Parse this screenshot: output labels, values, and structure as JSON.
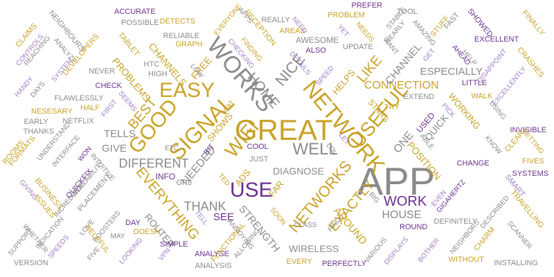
{
  "colors": {
    "gray": "#8a8a8a",
    "purple": "#6a2f8e",
    "gold": "#c9a227",
    "lavender": "#a07ec8"
  },
  "words": [
    {
      "text": "APP",
      "color": "gray"
    },
    {
      "text": "GREAT",
      "color": "gold"
    },
    {
      "text": "NETWORK",
      "color": "gold"
    },
    {
      "text": "WORKS",
      "color": "gray"
    },
    {
      "text": "SIGNAL",
      "color": "gold"
    },
    {
      "text": "USEFUL",
      "color": "gold"
    },
    {
      "text": "GOOD",
      "color": "gold"
    },
    {
      "text": "EASY",
      "color": "gold"
    },
    {
      "text": "USE",
      "color": "purple"
    },
    {
      "text": "WIFI",
      "color": "gold"
    },
    {
      "text": "WELL",
      "color": "gray"
    },
    {
      "text": "NETWORKS",
      "color": "gold"
    },
    {
      "text": "EVERYTHING",
      "color": "gold"
    },
    {
      "text": "LIKE",
      "color": "gold"
    },
    {
      "text": "NICE",
      "color": "gray"
    },
    {
      "text": "EXACTLY",
      "color": "gold"
    },
    {
      "text": "HOME",
      "color": "gray"
    },
    {
      "text": "WORK",
      "color": "purple"
    },
    {
      "text": "BEST",
      "color": "gold"
    },
    {
      "text": "THANK",
      "color": "gray"
    },
    {
      "text": "DIFFERENT",
      "color": "gray"
    },
    {
      "text": "CONNECTION",
      "color": "gold"
    },
    {
      "text": "ESPECIALLY",
      "color": "gray"
    },
    {
      "text": "HOUSE",
      "color": "gray"
    },
    {
      "text": "STRENGTH",
      "color": "gray"
    },
    {
      "text": "NEEDED",
      "color": "gray"
    },
    {
      "text": "AROUND",
      "color": "gold"
    },
    {
      "text": "CHANNEL",
      "color": "gray"
    },
    {
      "text": "CHANNELS",
      "color": "gold"
    },
    {
      "text": "WIRELESS",
      "color": "gray"
    },
    {
      "text": "DIAGNOSE",
      "color": "gray"
    },
    {
      "text": "POSITION",
      "color": "gold"
    },
    {
      "text": "PROBLEMS",
      "color": "gold"
    },
    {
      "text": "ROUTER",
      "color": "gray"
    },
    {
      "text": "ONE",
      "color": "gray"
    },
    {
      "text": "QUICK",
      "color": "gray"
    },
    {
      "text": "WORKING",
      "color": "gold"
    },
    {
      "text": "GIVE",
      "color": "gray"
    },
    {
      "text": "SEE",
      "color": "purple"
    },
    {
      "text": "TELLS",
      "color": "gray"
    },
    {
      "text": "SHOWS",
      "color": "gold"
    },
    {
      "text": "HELPS",
      "color": "gold"
    },
    {
      "text": "ADS",
      "color": "gold"
    },
    {
      "text": "FREE",
      "color": "gold"
    },
    {
      "text": "FAR",
      "color": "gold"
    },
    {
      "text": "STARS",
      "color": "gold"
    },
    {
      "text": "INFO",
      "color": "purple"
    },
    {
      "text": "USED",
      "color": "purple"
    },
    {
      "text": "CRASHES",
      "color": "gold"
    },
    {
      "text": "AWESOME",
      "color": "gray"
    },
    {
      "text": "EXCELLENT",
      "color": "purple"
    },
    {
      "text": "INVISIBLE",
      "color": "purple"
    },
    {
      "text": "DETECTS",
      "color": "gold"
    },
    {
      "text": "ACCURATE",
      "color": "purple"
    },
    {
      "text": "PROBLEM",
      "color": "gold"
    },
    {
      "text": "POSSIBLE",
      "color": "gray"
    },
    {
      "text": "RELIABLE",
      "color": "gray"
    },
    {
      "text": "GRAPH",
      "color": "gold"
    },
    {
      "text": "AREAS",
      "color": "gold"
    },
    {
      "text": "RECEPTION",
      "color": "gold"
    },
    {
      "text": "TOOL",
      "color": "gray"
    },
    {
      "text": "FAST",
      "color": "gray"
    },
    {
      "text": "STUFF",
      "color": "gold"
    },
    {
      "text": "SHOWED",
      "color": "purple"
    },
    {
      "text": "FINALLY",
      "color": "gold"
    },
    {
      "text": "PREFER",
      "color": "purple"
    },
    {
      "text": "REALLY",
      "color": "gray"
    },
    {
      "text": "NEED",
      "color": "lavender"
    },
    {
      "text": "YET",
      "color": "lavender"
    },
    {
      "text": "NEEDS",
      "color": "gold"
    },
    {
      "text": "STABLE",
      "color": "gray"
    },
    {
      "text": "NEARLY",
      "color": "gray"
    },
    {
      "text": "AMAZING",
      "color": "gray"
    },
    {
      "text": "WANT",
      "color": "gray"
    },
    {
      "text": "UPDATE",
      "color": "gray"
    },
    {
      "text": "ALSO",
      "color": "purple"
    },
    {
      "text": "EVERYONE",
      "color": "gold"
    },
    {
      "text": "APPS",
      "color": "gray"
    },
    {
      "text": "CLAIMS",
      "color": "gold"
    },
    {
      "text": "CONTROLS",
      "color": "lavender"
    },
    {
      "text": "REACHING",
      "color": "gray"
    },
    {
      "text": "NEIGHBOURS",
      "color": "gray"
    },
    {
      "text": "TABLET",
      "color": "gold"
    },
    {
      "text": "ANALYZE",
      "color": "gray"
    },
    {
      "text": "DEVELOPERS",
      "color": "gold"
    },
    {
      "text": "SYSTEM",
      "color": "lavender"
    },
    {
      "text": "HANDY",
      "color": "lavender"
    },
    {
      "text": "DAYS",
      "color": "gray"
    },
    {
      "text": "NEVER",
      "color": "gray"
    },
    {
      "text": "HTC",
      "color": "gray"
    },
    {
      "text": "HIGH",
      "color": "gray"
    },
    {
      "text": "CHECK",
      "color": "purple"
    },
    {
      "text": "LOW",
      "color": "gray"
    },
    {
      "text": "FLAWLESSLY",
      "color": "gray"
    },
    {
      "text": "HALF",
      "color": "gold"
    },
    {
      "text": "FIRST",
      "color": "lavender"
    },
    {
      "text": "SEEMS",
      "color": "lavender"
    },
    {
      "text": "NESESARY",
      "color": "gold"
    },
    {
      "text": "EARLY",
      "color": "gray"
    },
    {
      "text": "NETFLIX",
      "color": "gray"
    },
    {
      "text": "THANKS",
      "color": "gray"
    },
    {
      "text": "UNDERSTAND",
      "color": "gray"
    },
    {
      "text": "INTERFACE",
      "color": "gray"
    },
    {
      "text": "FORMATS",
      "color": "gold"
    },
    {
      "text": "ROOMS",
      "color": "gold"
    },
    {
      "text": "WON",
      "color": "purple"
    },
    {
      "text": "ETC",
      "color": "gray"
    },
    {
      "text": "BIT",
      "color": "purple"
    },
    {
      "text": "COOL",
      "color": "purple"
    },
    {
      "text": "JUST",
      "color": "gray"
    },
    {
      "text": "LOL",
      "color": "gray"
    },
    {
      "text": "LET",
      "color": "lavender"
    },
    {
      "text": "GIVING",
      "color": "lavender"
    },
    {
      "text": "BUSINESS",
      "color": "gold"
    },
    {
      "text": "QUICKFIX",
      "color": "purple"
    },
    {
      "text": "ISSUES",
      "color": "gold"
    },
    {
      "text": "INCREDIBLE",
      "color": "gray"
    },
    {
      "text": "AVAILABILITY",
      "color": "gray"
    },
    {
      "text": "PLACEMENT",
      "color": "gray"
    },
    {
      "text": "INTUITIVE",
      "color": "gray"
    },
    {
      "text": "GR8",
      "color": "gray"
    },
    {
      "text": "TED",
      "color": "gold"
    },
    {
      "text": "DAY",
      "color": "purple"
    },
    {
      "text": "DOESN",
      "color": "gold"
    },
    {
      "text": "BOOSTERS",
      "color": "gray"
    },
    {
      "text": "INDICATION",
      "color": "gray"
    },
    {
      "text": "SPEEDS",
      "color": "lavender"
    },
    {
      "text": "SUPPORT",
      "color": "gray"
    },
    {
      "text": "WHETHER",
      "color": "gray"
    },
    {
      "text": "LOVE",
      "color": "gray"
    },
    {
      "text": "HELPFUL",
      "color": "gold"
    },
    {
      "text": "FIVE",
      "color": "gray"
    },
    {
      "text": "MAY",
      "color": "gray"
    },
    {
      "text": "LOOKING",
      "color": "lavender"
    },
    {
      "text": "SIMPLE",
      "color": "purple"
    },
    {
      "text": "VPN",
      "color": "lavender"
    },
    {
      "text": "ANALYSE",
      "color": "purple"
    },
    {
      "text": "ANALYSIS",
      "color": "gray"
    },
    {
      "text": "VERSION",
      "color": "gray"
    },
    {
      "text": "TELL",
      "color": "lavender"
    },
    {
      "text": "FUNCTIONAL",
      "color": "gold"
    },
    {
      "text": "ALLOWING",
      "color": "gray"
    },
    {
      "text": "ANNOYING",
      "color": "gray"
    },
    {
      "text": "SOON",
      "color": "gold"
    },
    {
      "text": "CLASS",
      "color": "gray"
    },
    {
      "text": "FIND",
      "color": "gray"
    },
    {
      "text": "EVERY",
      "color": "gold"
    },
    {
      "text": "PERFECTLY",
      "color": "purple"
    },
    {
      "text": "VARIOUS",
      "color": "gray"
    },
    {
      "text": "DISPLAYS",
      "color": "lavender"
    },
    {
      "text": "BIG",
      "color": "gray"
    },
    {
      "text": "ROUND",
      "color": "purple"
    },
    {
      "text": "DEFINITELY",
      "color": "gray"
    },
    {
      "text": "EVEN",
      "color": "lavender"
    },
    {
      "text": "GIGAHERTZ",
      "color": "purple"
    },
    {
      "text": "DESCRIBED",
      "color": "gray"
    },
    {
      "text": "BOTHER",
      "color": "lavender"
    },
    {
      "text": "NEIGHBORS",
      "color": "gray"
    },
    {
      "text": "CHARM",
      "color": "gold"
    },
    {
      "text": "WITHOUT",
      "color": "gold"
    },
    {
      "text": "INSTALLING",
      "color": "gray"
    },
    {
      "text": "SCANNER",
      "color": "gray"
    },
    {
      "text": "SMART",
      "color": "lavender"
    },
    {
      "text": "TRAVELLING",
      "color": "gold"
    },
    {
      "text": "SYSTEMS",
      "color": "purple"
    },
    {
      "text": "FIVES",
      "color": "gold"
    },
    {
      "text": "CHANGE",
      "color": "purple"
    },
    {
      "text": "SETTING",
      "color": "gold"
    },
    {
      "text": "CLEAR",
      "color": "gold"
    },
    {
      "text": "KNOW",
      "color": "gray"
    },
    {
      "text": "USING",
      "color": "gray"
    },
    {
      "text": "EXCELLENTLY",
      "color": "lavender"
    },
    {
      "text": "LITTLE",
      "color": "purple"
    },
    {
      "text": "WALK",
      "color": "gold"
    },
    {
      "text": "DISAPPOINT",
      "color": "lavender"
    },
    {
      "text": "HELP",
      "color": "gray"
    },
    {
      "text": "AHEAD",
      "color": "purple"
    },
    {
      "text": "GET",
      "color": "lavender"
    },
    {
      "text": "PICK",
      "color": "lavender"
    },
    {
      "text": "ABLE",
      "color": "gray"
    },
    {
      "text": "TRY",
      "color": "gold"
    },
    {
      "text": "EXTEND",
      "color": "gray"
    },
    {
      "text": "SPEED",
      "color": "lavender"
    },
    {
      "text": "DETAILS",
      "color": "lavender"
    },
    {
      "text": "CHECKING",
      "color": "lavender"
    },
    {
      "text": "FINDING",
      "color": "gold"
    },
    {
      "text": "WAT",
      "color": "gold"
    }
  ]
}
